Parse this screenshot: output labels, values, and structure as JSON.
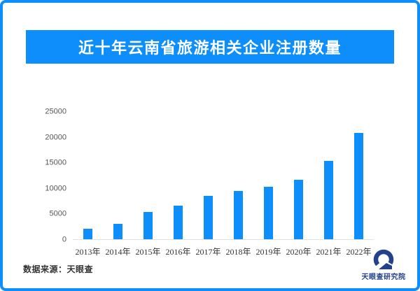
{
  "page": {
    "title": "近十年云南省旅游相关企业注册数量",
    "source_label": "数据来源：天眼查",
    "logo_text": "天眼查研究院",
    "colors": {
      "accent": "#0d8efb",
      "logo_navy": "#24418e",
      "axis_text": "#555555",
      "tick_text": "#333333",
      "baseline": "#e2e2e2"
    }
  },
  "chart_data": {
    "type": "bar",
    "title": "近十年云南省旅游相关企业注册数量",
    "categories": [
      "2013年",
      "2014年",
      "2015年",
      "2016年",
      "2017年",
      "2018年",
      "2019年",
      "2020年",
      "2021年",
      "2022年"
    ],
    "values": [
      2100,
      3000,
      5300,
      6500,
      8500,
      9400,
      10200,
      11600,
      15300,
      20800
    ],
    "xlabel": "",
    "ylabel": "",
    "ylim": [
      0,
      25000
    ],
    "yticks": [
      0,
      5000,
      10000,
      15000,
      20000,
      25000
    ],
    "bar_color": "#0d8efb",
    "grid": false,
    "legend": "none"
  }
}
